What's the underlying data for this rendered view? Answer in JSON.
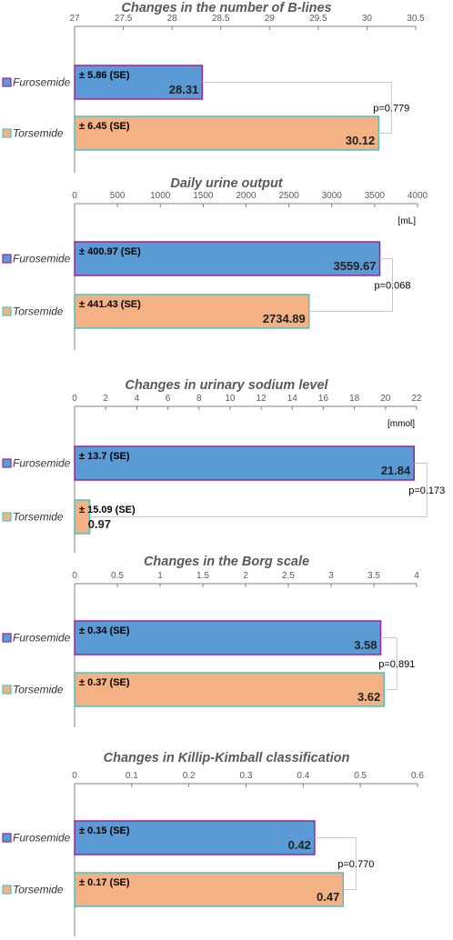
{
  "colors": {
    "furosemide_fill": "#5b9bd5",
    "furosemide_border": "#a0239b",
    "torsemide_fill": "#f4b183",
    "torsemide_border": "#4bc3c0",
    "title": "#595959",
    "text": "#000000",
    "axis": "#595959",
    "bracket": "#c8c8c8"
  },
  "chart_data": [
    {
      "type": "bar",
      "orientation": "horizontal",
      "title": "Changes in the number of B-lines",
      "unit": "",
      "xlim": [
        27,
        30.5
      ],
      "ticks": [
        27,
        27.5,
        28,
        28.5,
        29,
        29.5,
        30,
        30.5
      ],
      "tick_labels": [
        "27",
        "27.5",
        "28",
        "28.5",
        "29",
        "29.5",
        "30",
        "30.5"
      ],
      "categories": [
        "Furosemide",
        "Torsemide"
      ],
      "values": [
        28.31,
        30.12
      ],
      "value_labels": [
        "28.31",
        "30.12"
      ],
      "se_labels": [
        "± 5.86 (SE)",
        "± 6.45 (SE)"
      ],
      "p_value": "p=0.779"
    },
    {
      "type": "bar",
      "orientation": "horizontal",
      "title": "Daily urine output",
      "unit": "[mL]",
      "xlim": [
        0,
        4000
      ],
      "ticks": [
        0,
        500,
        1000,
        1500,
        2000,
        2500,
        3000,
        3500,
        4000
      ],
      "tick_labels": [
        "0",
        "500",
        "1000",
        "1500",
        "2000",
        "2500",
        "3000",
        "3500",
        "4000"
      ],
      "categories": [
        "Furosemide",
        "Torsemide"
      ],
      "values": [
        3559.67,
        2734.89
      ],
      "value_labels": [
        "3559.67",
        "2734.89"
      ],
      "se_labels": [
        "± 400.97 (SE)",
        "± 441.43 (SE)"
      ],
      "p_value": "p=0.068"
    },
    {
      "type": "bar",
      "orientation": "horizontal",
      "title": "Changes in urinary sodium level",
      "unit": "[mmol]",
      "xlim": [
        0,
        22
      ],
      "ticks": [
        0,
        2,
        4,
        6,
        8,
        10,
        12,
        14,
        16,
        18,
        20,
        22
      ],
      "tick_labels": [
        "0",
        "2",
        "4",
        "6",
        "8",
        "10",
        "12",
        "14",
        "16",
        "18",
        "20",
        "22"
      ],
      "categories": [
        "Furosemide",
        "Torsemide"
      ],
      "values": [
        21.84,
        0.97
      ],
      "value_labels": [
        "21.84",
        "0.97"
      ],
      "se_labels": [
        "± 13.7 (SE)",
        "± 15.09 (SE)"
      ],
      "p_value": "p=0.173"
    },
    {
      "type": "bar",
      "orientation": "horizontal",
      "title": "Changes in the Borg scale",
      "unit": "",
      "xlim": [
        0,
        4
      ],
      "ticks": [
        0,
        0.5,
        1,
        1.5,
        2,
        2.5,
        3,
        3.5,
        4
      ],
      "tick_labels": [
        "0",
        "0.5",
        "1",
        "1.5",
        "2",
        "2.5",
        "3",
        "3.5",
        "4"
      ],
      "categories": [
        "Furosemide",
        "Torsemide"
      ],
      "values": [
        3.58,
        3.62
      ],
      "value_labels": [
        "3.58",
        "3.62"
      ],
      "se_labels": [
        "± 0.34 (SE)",
        "± 0.37 (SE)"
      ],
      "p_value": "p=0.891"
    },
    {
      "type": "bar",
      "orientation": "horizontal",
      "title": "Changes in Killip-Kimball classification",
      "unit": "",
      "xlim": [
        0,
        0.6
      ],
      "ticks": [
        0,
        0.1,
        0.2,
        0.3,
        0.4,
        0.5,
        0.6
      ],
      "tick_labels": [
        "0",
        "0.1",
        "0.2",
        "0.3",
        "0.4",
        "0.5",
        "0.6"
      ],
      "categories": [
        "Furosemide",
        "Torsemide"
      ],
      "values": [
        0.42,
        0.47
      ],
      "value_labels": [
        "0.42",
        "0.47"
      ],
      "se_labels": [
        "± 0.15 (SE)",
        "± 0.17 (SE)"
      ],
      "p_value": "p=0.770"
    }
  ]
}
